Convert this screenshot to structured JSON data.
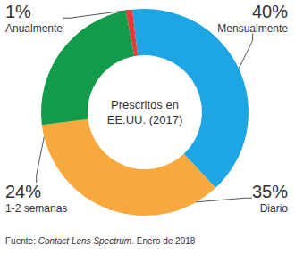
{
  "chart_data": {
    "type": "pie",
    "center_text": "Prescritos en\nEE.UU. (2017)",
    "categories": [
      "Mensualmente",
      "Diario",
      "1-2 semanas",
      "Anualmente"
    ],
    "values": [
      40,
      35,
      24,
      1
    ],
    "value_labels": [
      "40%",
      "35%",
      "24%",
      "1%"
    ],
    "colors": [
      "#1ea5e3",
      "#f8a93d",
      "#129b4a",
      "#e23c3a"
    ],
    "data_labels": true,
    "source": {
      "text": "Fuente: Contact Lens Spectrum. Enero de 2018",
      "italic": "Contact Lens Spectrum"
    }
  }
}
